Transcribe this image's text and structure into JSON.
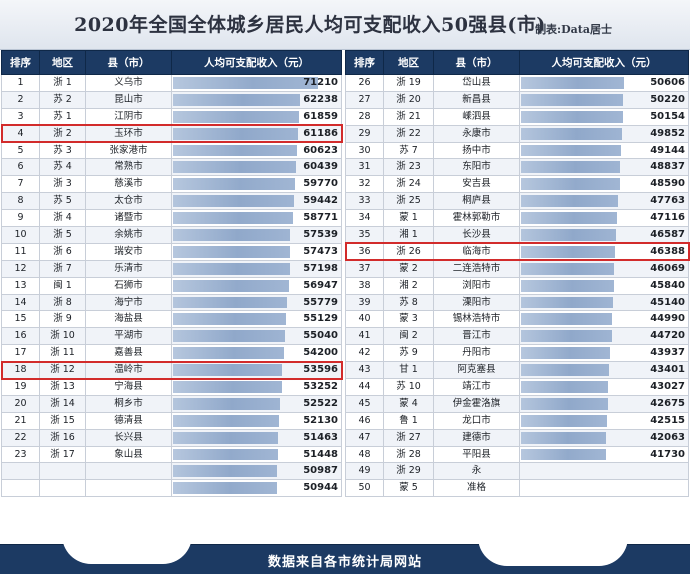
{
  "title": "2020年全国全体城乡居民人均可支配收入50强县(市)",
  "credit": "制表:Data居士",
  "footer": "数据来自各市统计局网站",
  "headers": [
    "排序",
    "地区",
    "县（市）",
    "人均可支配收入（元）"
  ],
  "colors": {
    "header_bg": "#1c3a63",
    "bar": "#7f9bc2",
    "highlight": "#d22b2b"
  },
  "chart_data": {
    "type": "table",
    "value_max": 71210,
    "left_rows": [
      {
        "rank": "1",
        "region": "浙 1",
        "county": "义乌市",
        "value": 71210
      },
      {
        "rank": "2",
        "region": "苏 2",
        "county": "昆山市",
        "value": 62238
      },
      {
        "rank": "3",
        "region": "苏 1",
        "county": "江阴市",
        "value": 61859
      },
      {
        "rank": "4",
        "region": "浙 2",
        "county": "玉环市",
        "value": 61186,
        "highlight": true
      },
      {
        "rank": "5",
        "region": "苏 3",
        "county": "张家港市",
        "value": 60623
      },
      {
        "rank": "6",
        "region": "苏 4",
        "county": "常熟市",
        "value": 60439
      },
      {
        "rank": "7",
        "region": "浙 3",
        "county": "慈溪市",
        "value": 59770
      },
      {
        "rank": "8",
        "region": "苏 5",
        "county": "太仓市",
        "value": 59442
      },
      {
        "rank": "9",
        "region": "浙 4",
        "county": "诸暨市",
        "value": 58771
      },
      {
        "rank": "10",
        "region": "浙 5",
        "county": "余姚市",
        "value": 57539
      },
      {
        "rank": "11",
        "region": "浙 6",
        "county": "瑞安市",
        "value": 57473
      },
      {
        "rank": "12",
        "region": "浙 7",
        "county": "乐清市",
        "value": 57198
      },
      {
        "rank": "13",
        "region": "闽 1",
        "county": "石狮市",
        "value": 56947
      },
      {
        "rank": "14",
        "region": "浙 8",
        "county": "海宁市",
        "value": 55779
      },
      {
        "rank": "15",
        "region": "浙 9",
        "county": "海盐县",
        "value": 55129
      },
      {
        "rank": "16",
        "region": "浙 10",
        "county": "平湖市",
        "value": 55040
      },
      {
        "rank": "17",
        "region": "浙 11",
        "county": "嘉善县",
        "value": 54200
      },
      {
        "rank": "18",
        "region": "浙 12",
        "county": "温岭市",
        "value": 53596,
        "highlight": true
      },
      {
        "rank": "19",
        "region": "浙 13",
        "county": "宁海县",
        "value": 53252
      },
      {
        "rank": "20",
        "region": "浙 14",
        "county": "桐乡市",
        "value": 52522
      },
      {
        "rank": "21",
        "region": "浙 15",
        "county": "德清县",
        "value": 52130
      },
      {
        "rank": "22",
        "region": "浙 16",
        "county": "长兴县",
        "value": 51463
      },
      {
        "rank": "23",
        "region": "浙 17",
        "county": "象山县",
        "value": 51448
      },
      {
        "rank": "",
        "region": "",
        "county": "",
        "value": 50987
      },
      {
        "rank": "",
        "region": "",
        "county": "",
        "value": 50944
      }
    ],
    "right_rows": [
      {
        "rank": "26",
        "region": "浙 19",
        "county": "岱山县",
        "value": 50606
      },
      {
        "rank": "27",
        "region": "浙 20",
        "county": "新昌县",
        "value": 50220
      },
      {
        "rank": "28",
        "region": "浙 21",
        "county": "嵊泗县",
        "value": 50154
      },
      {
        "rank": "29",
        "region": "浙 22",
        "county": "永康市",
        "value": 49852
      },
      {
        "rank": "30",
        "region": "苏 7",
        "county": "扬中市",
        "value": 49144
      },
      {
        "rank": "31",
        "region": "浙 23",
        "county": "东阳市",
        "value": 48837
      },
      {
        "rank": "32",
        "region": "浙 24",
        "county": "安吉县",
        "value": 48590
      },
      {
        "rank": "33",
        "region": "浙 25",
        "county": "桐庐县",
        "value": 47763
      },
      {
        "rank": "34",
        "region": "蒙 1",
        "county": "霍林郭勒市",
        "value": 47116
      },
      {
        "rank": "35",
        "region": "湘 1",
        "county": "长沙县",
        "value": 46587
      },
      {
        "rank": "36",
        "region": "浙 26",
        "county": "临海市",
        "value": 46388,
        "highlight": true
      },
      {
        "rank": "37",
        "region": "蒙 2",
        "county": "二连浩特市",
        "value": 46069
      },
      {
        "rank": "38",
        "region": "湘 2",
        "county": "浏阳市",
        "value": 45840
      },
      {
        "rank": "39",
        "region": "苏 8",
        "county": "溧阳市",
        "value": 45140
      },
      {
        "rank": "40",
        "region": "蒙 3",
        "county": "锡林浩特市",
        "value": 44990
      },
      {
        "rank": "41",
        "region": "闽 2",
        "county": "晋江市",
        "value": 44720
      },
      {
        "rank": "42",
        "region": "苏 9",
        "county": "丹阳市",
        "value": 43937
      },
      {
        "rank": "43",
        "region": "甘 1",
        "county": "阿克塞县",
        "value": 43401
      },
      {
        "rank": "44",
        "region": "苏 10",
        "county": "靖江市",
        "value": 43027
      },
      {
        "rank": "45",
        "region": "蒙 4",
        "county": "伊金霍洛旗",
        "value": 42675
      },
      {
        "rank": "46",
        "region": "鲁 1",
        "county": "龙口市",
        "value": 42515
      },
      {
        "rank": "47",
        "region": "浙 27",
        "county": "建德市",
        "value": 42063
      },
      {
        "rank": "48",
        "region": "浙 28",
        "county": "平阳县",
        "value": 41730
      },
      {
        "rank": "49",
        "region": "浙 29",
        "county": "永",
        "value": null
      },
      {
        "rank": "50",
        "region": "蒙 5",
        "county": "准格",
        "value": null
      }
    ]
  }
}
